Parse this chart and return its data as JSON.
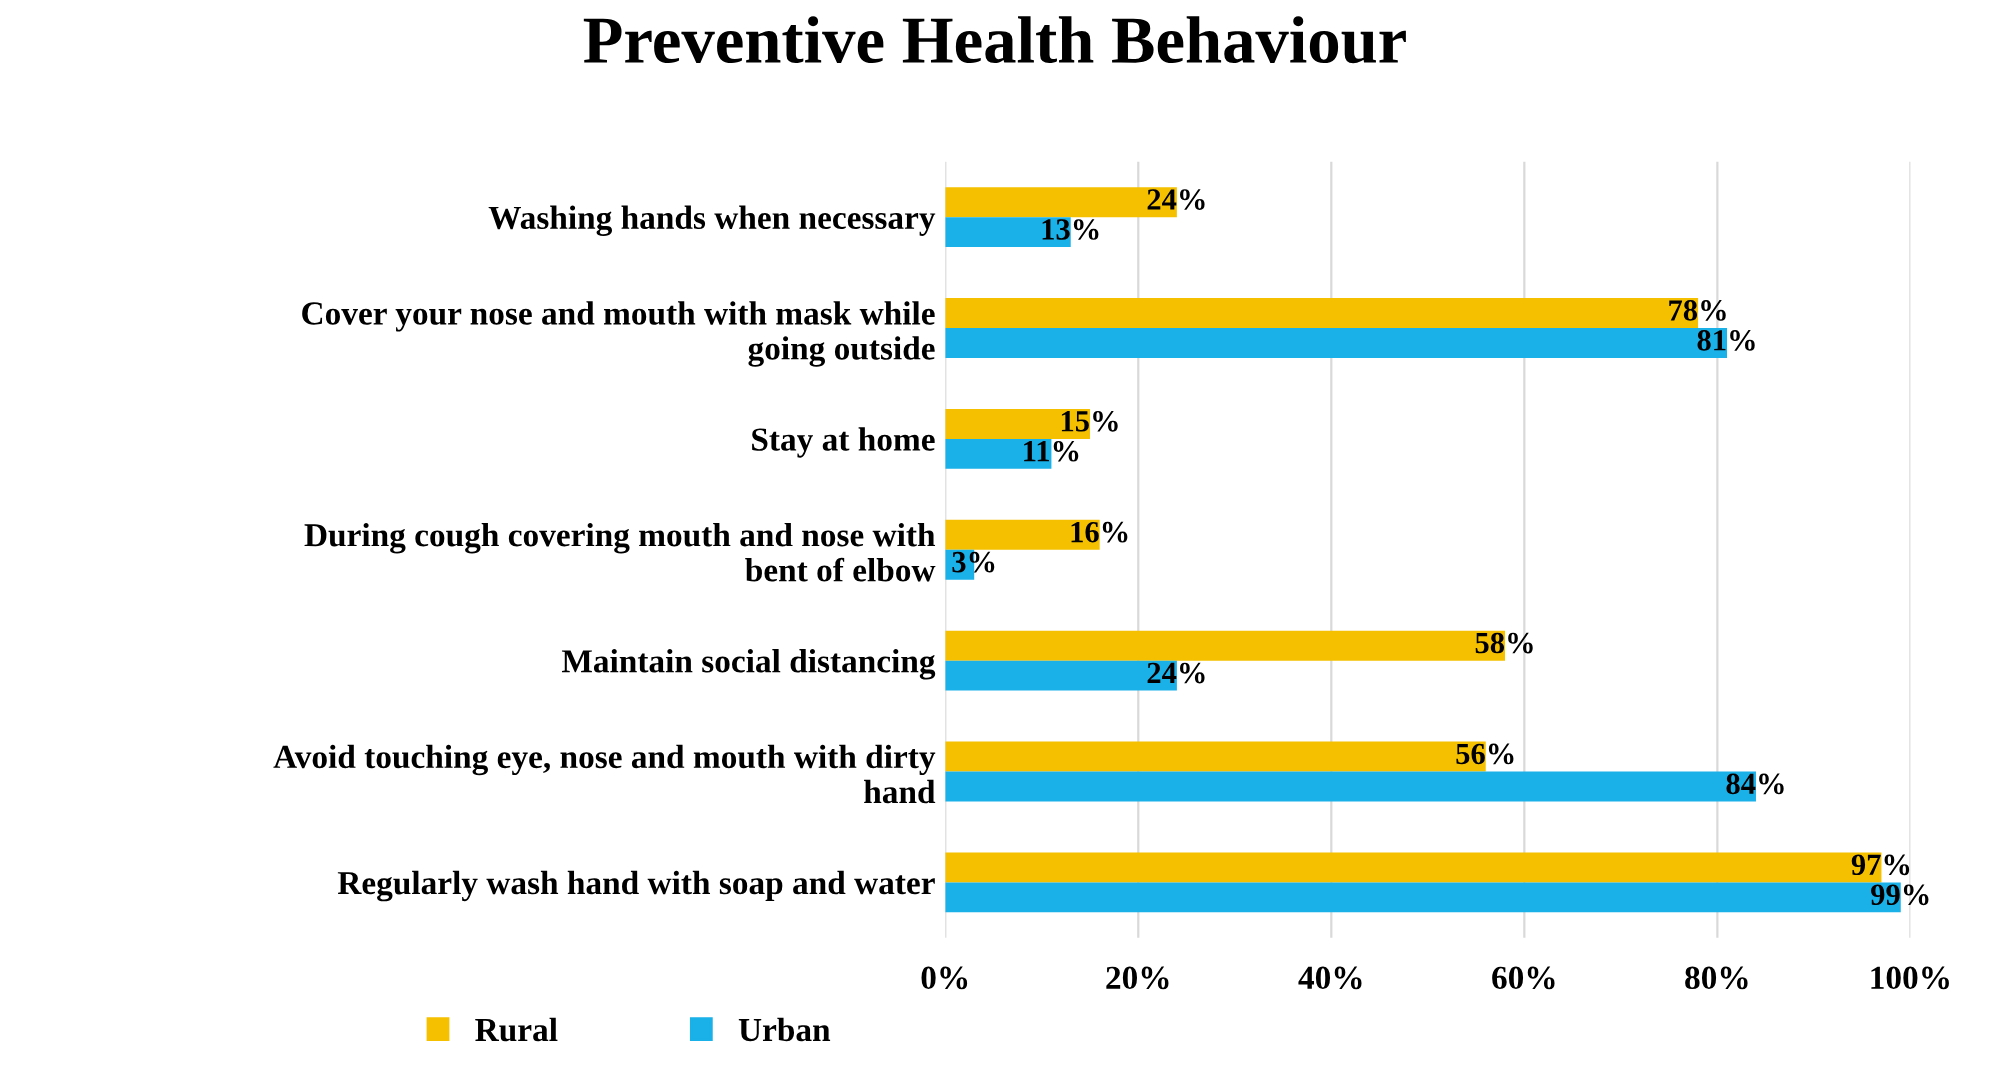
{
  "chart_data": {
    "type": "bar",
    "orientation": "horizontal",
    "title": "Preventive Health Behaviour",
    "categories": [
      "Washing hands when necessary",
      "Cover your nose and mouth with mask while\ngoing outside",
      "Stay at home",
      "During cough covering mouth and nose with\nbent of elbow",
      "Maintain social distancing",
      "Avoid touching eye, nose and mouth with dirty\nhand",
      "Regularly wash hand with soap and water"
    ],
    "series": [
      {
        "name": "Rural",
        "color": "#f5c000",
        "values": [
          24,
          78,
          15,
          16,
          58,
          56,
          97
        ],
        "value_labels": [
          "24%",
          "78%",
          "15%",
          "16%",
          "58%",
          "56%",
          "97%"
        ]
      },
      {
        "name": "Urban",
        "color": "#1ab0e8",
        "values": [
          13,
          81,
          11,
          3,
          24,
          84,
          99
        ],
        "value_labels": [
          "13%",
          "81%",
          "11%",
          "3%",
          "24%",
          "84%",
          "99%"
        ]
      }
    ],
    "xlim": [
      0,
      100
    ],
    "xticks": [
      {
        "value": 0,
        "label": "0%"
      },
      {
        "value": 20,
        "label": "20%"
      },
      {
        "value": 40,
        "label": "40%"
      },
      {
        "value": 60,
        "label": "60%"
      },
      {
        "value": 80,
        "label": "80%"
      },
      {
        "value": 100,
        "label": "100%"
      }
    ],
    "grid": "x",
    "legend": "bottom left"
  }
}
